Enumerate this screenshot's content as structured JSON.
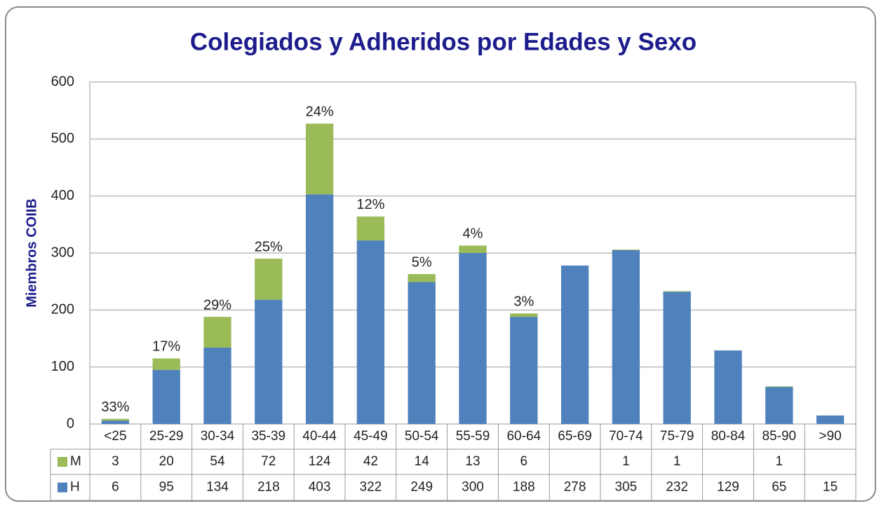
{
  "chart_data": {
    "type": "bar",
    "stacked": true,
    "title": "Colegiados y Adheridos por Edades y Sexo",
    "ylabel": "Miembros COIIB",
    "categories": [
      "<25",
      "25-29",
      "30-34",
      "35-39",
      "40-44",
      "45-49",
      "50-54",
      "55-59",
      "60-64",
      "65-69",
      "70-74",
      "75-79",
      "80-84",
      "85-90",
      ">90"
    ],
    "series": [
      {
        "name": "H",
        "color": "#4f81bd",
        "values": [
          6,
          95,
          134,
          218,
          403,
          322,
          249,
          300,
          188,
          278,
          305,
          232,
          129,
          65,
          15
        ]
      },
      {
        "name": "M",
        "color": "#9bbb59",
        "values": [
          3,
          20,
          54,
          72,
          124,
          42,
          14,
          13,
          6,
          null,
          1,
          1,
          null,
          1,
          null
        ]
      }
    ],
    "share_labels": [
      "33%",
      "17%",
      "29%",
      "25%",
      "24%",
      "12%",
      "5%",
      "4%",
      "3%",
      null,
      null,
      null,
      null,
      null,
      null
    ],
    "ylim": [
      0,
      600
    ],
    "yticks": [
      0,
      100,
      200,
      300,
      400,
      500,
      600
    ],
    "grid": true
  }
}
